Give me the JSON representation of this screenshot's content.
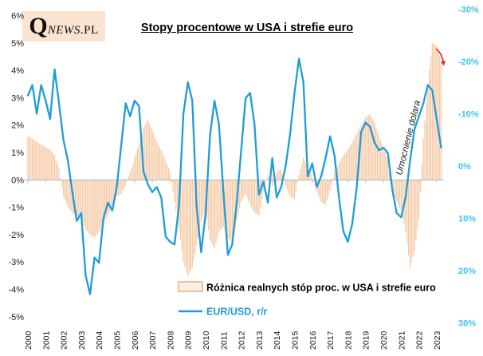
{
  "logo": {
    "q": "Q",
    "news": "NEWS",
    "pl": ".PL",
    "bg": "#FBE3D1"
  },
  "title": "Stopy procentowe w USA i strefie euro",
  "annotations": {
    "strengthening_note": "Umocnienie dolara"
  },
  "legend": [
    {
      "type": "bar",
      "label": "Różnica realnych stóp proc. w USA i strefie euro"
    },
    {
      "type": "line",
      "label": "EUR/USD, r/r"
    }
  ],
  "colors": {
    "bar_fill": "#F6C8A2",
    "bar_legend_border": "#F0BE98",
    "bar_legend_fill": "#FDEFE3",
    "line_blue": "#1E9CD9",
    "right_axis_blue": "#3FC3EF",
    "arrow_red": "#E82222",
    "axis_gray": "#BFBFBF",
    "text_black": "#1A1A1A"
  },
  "chart_data": {
    "type": "combo bar+line (monthly time series, 2000–2023)",
    "title": "Stopy procentowe w USA i strefie euro",
    "x_years": [
      "2000",
      "2001",
      "2002",
      "2003",
      "2004",
      "2005",
      "2006",
      "2007",
      "2008",
      "2009",
      "2010",
      "2011",
      "2012",
      "2013",
      "2014",
      "2015",
      "2016",
      "2017",
      "2018",
      "2019",
      "2020",
      "2021",
      "2022",
      "2023"
    ],
    "left_axis": {
      "range": [
        -5,
        6
      ],
      "ticks": [
        {
          "label": "6%",
          "value": 6
        },
        {
          "label": "5%",
          "value": 5
        },
        {
          "label": "4%",
          "value": 4
        },
        {
          "label": "3%",
          "value": 3
        },
        {
          "label": "2%",
          "value": 2
        },
        {
          "label": "1%",
          "value": 1
        },
        {
          "label": "0%",
          "value": 0
        },
        {
          "label": "-1%",
          "value": -1
        },
        {
          "label": "-2%",
          "value": -2
        },
        {
          "label": "-3%",
          "value": -3
        },
        {
          "label": "-4%",
          "value": -4
        },
        {
          "label": "-5%",
          "value": -5
        }
      ]
    },
    "right_axis": {
      "range": [
        -30,
        30
      ],
      "inverted": true,
      "ticks": [
        {
          "label": "-30%",
          "value": -30
        },
        {
          "label": "-20%",
          "value": -20
        },
        {
          "label": "-10%",
          "value": -10
        },
        {
          "label": "0%",
          "value": 0
        },
        {
          "label": "10%",
          "value": 10
        },
        {
          "label": "20%",
          "value": 20
        },
        {
          "label": "30%",
          "value": 30
        }
      ]
    },
    "grid": false,
    "legend_position": "bottom",
    "series": [
      {
        "name": "Różnica realnych stóp proc. w USA i strefie euro",
        "type": "bar",
        "axis": "left",
        "unit": "%",
        "x_start": 2000.0,
        "x_step": 0.25,
        "values": [
          1.6,
          1.5,
          1.4,
          1.3,
          1.2,
          1.1,
          0.9,
          0.4,
          -0.6,
          -1.0,
          -1.2,
          -1.3,
          -1.4,
          -1.8,
          -2.0,
          -2.1,
          -1.9,
          -1.6,
          -1.3,
          -0.9,
          -0.6,
          -0.5,
          -0.2,
          0.3,
          0.8,
          1.3,
          1.9,
          2.2,
          1.8,
          1.4,
          1.1,
          0.7,
          0.3,
          -0.8,
          -1.8,
          -3.0,
          -3.5,
          -3.2,
          -2.4,
          -1.5,
          -1.1,
          -2.2,
          -2.5,
          -1.9,
          -1.7,
          -2.1,
          -2.3,
          -1.5,
          -0.8,
          -0.5,
          -0.9,
          -1.2,
          -1.3,
          -0.4,
          0.2,
          -0.2,
          0.3,
          0.4,
          -0.2,
          -0.6,
          -0.7,
          0.2,
          0.8,
          0.5,
          0.1,
          -0.4,
          -0.8,
          -0.9,
          -0.4,
          0.3,
          0.6,
          0.9,
          1.1,
          1.4,
          1.7,
          2.0,
          2.3,
          2.4,
          2.1,
          1.6,
          1.2,
          0.7,
          -0.3,
          -0.8,
          -1.1,
          -1.9,
          -3.2,
          -2.6,
          -1.4,
          1.5,
          3.5,
          5.0,
          4.9,
          4.3
        ]
      },
      {
        "name": "EUR/USD, r/r",
        "type": "line",
        "axis": "right",
        "unit": "%",
        "x_start": 2000.0,
        "x_step": 0.25,
        "values": [
          -13.5,
          -15.5,
          -10,
          -15.5,
          -12.5,
          -9,
          -18.5,
          -12,
          -5,
          -1,
          5,
          10.5,
          9,
          21,
          24.5,
          17.5,
          18.5,
          10,
          7,
          8.5,
          4,
          -4,
          -12,
          -9.5,
          -12.5,
          -11.5,
          1,
          3.5,
          5,
          4,
          6,
          13.5,
          14.5,
          15,
          7.5,
          -10,
          -16,
          -12.5,
          8,
          16.5,
          9,
          -6,
          -12.5,
          -8,
          5,
          17,
          15,
          7,
          -3,
          -13,
          -14,
          -8,
          5.5,
          3,
          7,
          -1.5,
          6,
          4,
          0,
          -6,
          -14,
          -20.5,
          -16,
          2,
          -0.5,
          4,
          2,
          -1.5,
          -5.7,
          -2,
          6,
          12.5,
          14.5,
          11,
          4,
          -6.5,
          -8.3,
          -7.5,
          -4.5,
          -3,
          -3.5,
          -2.5,
          4.5,
          9,
          9.8,
          6,
          -1,
          -7,
          -9.5,
          -12,
          -15.5,
          -14.5,
          -9,
          -3.5
        ]
      }
    ]
  }
}
